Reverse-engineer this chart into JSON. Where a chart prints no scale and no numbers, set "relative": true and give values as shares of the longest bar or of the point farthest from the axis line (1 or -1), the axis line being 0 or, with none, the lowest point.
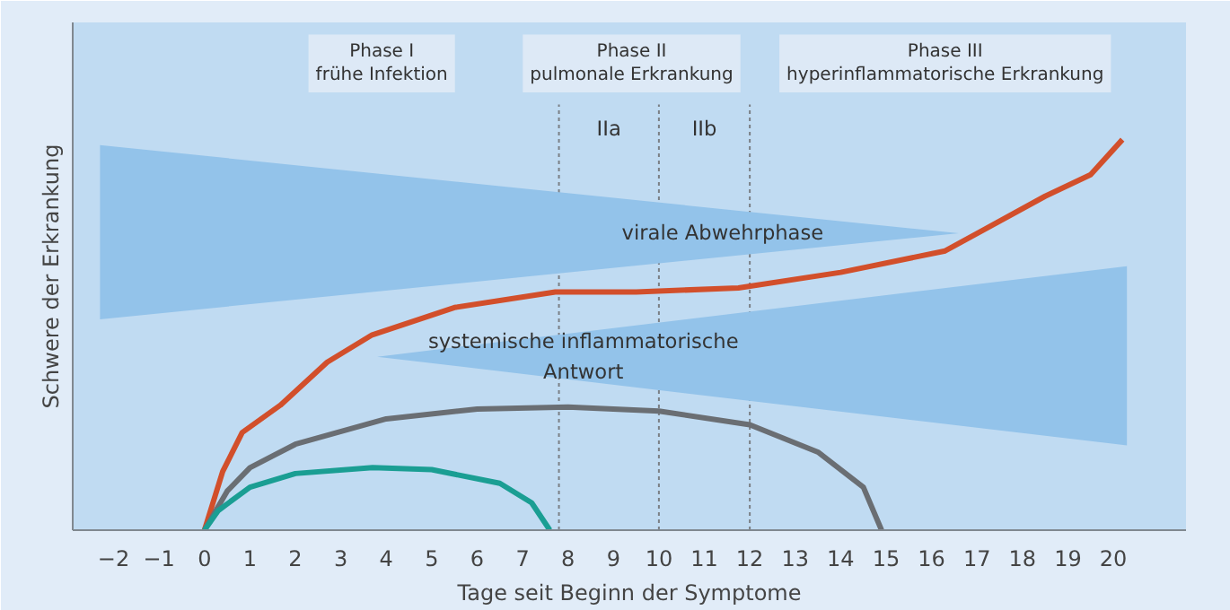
{
  "chart_data": {
    "type": "line",
    "relative": true,
    "xlabel": "Tage seit Beginn der Symptome",
    "ylabel": "Schwere der Erkrankung",
    "grid": false,
    "xlim": [
      -2.9,
      21.6
    ],
    "xticks": [
      {
        "value": -2,
        "label": "−2"
      },
      {
        "value": -1,
        "label": "−1"
      },
      0,
      1,
      2,
      3,
      4,
      5,
      6,
      7,
      8,
      9,
      10,
      11,
      12,
      13,
      14,
      15,
      16,
      17,
      18,
      19,
      20
    ],
    "series": [
      {
        "type": "area",
        "name": "virale Abwehrphase",
        "color": "#93c3ea",
        "x": [
          -2.3,
          16.6,
          -2.3
        ],
        "values": [
          0.986,
          0.76,
          0.54
        ]
      },
      {
        "type": "area",
        "name": "systemische inflammatorische\nAntwort",
        "color": "#93c3ea",
        "x": [
          3.8,
          20.3,
          20.3
        ],
        "values": [
          0.444,
          0.676,
          0.217
        ]
      },
      {
        "color": "#d24f2b",
        "x": [
          0,
          0.4,
          0.83,
          1.67,
          2.7,
          3.69,
          5.5,
          7.72,
          9.5,
          11.75,
          14,
          16.3,
          18.5,
          19.5,
          20.2
        ],
        "values": [
          0,
          0.15,
          0.25,
          0.32,
          0.43,
          0.5,
          0.57,
          0.61,
          0.61,
          0.62,
          0.66,
          0.715,
          0.855,
          0.91,
          1
        ]
      },
      {
        "color": "#6a6e73",
        "x": [
          0,
          0.5,
          1,
          2,
          4,
          6,
          8,
          10,
          12,
          13.5,
          14.5,
          14.9
        ],
        "values": [
          0,
          0.1,
          0.16,
          0.22,
          0.285,
          0.31,
          0.315,
          0.305,
          0.27,
          0.2,
          0.11,
          0
        ]
      },
      {
        "color": "#1a9e93",
        "x": [
          0,
          0.3,
          1,
          2,
          3.7,
          5,
          6.5,
          7.2,
          7.6
        ],
        "values": [
          0,
          0.05,
          0.11,
          0.145,
          0.16,
          0.155,
          0.12,
          0.07,
          0
        ]
      }
    ],
    "ref_lines": [
      {
        "axis": "x",
        "value": 7.8,
        "color": "#7a7f85",
        "line_style": "dotted"
      },
      {
        "axis": "x",
        "value": 10,
        "color": "#7a7f85",
        "line_style": "dotted"
      },
      {
        "axis": "x",
        "value": 12,
        "color": "#7a7f85",
        "line_style": "dotted"
      }
    ],
    "annotations": [
      "Phase I\nfrühe Infektion",
      "Phase II\npulmonale Erkrankung",
      "Phase III\nhyperinflammatorische Erkrankung",
      "IIa",
      "IIb"
    ]
  }
}
